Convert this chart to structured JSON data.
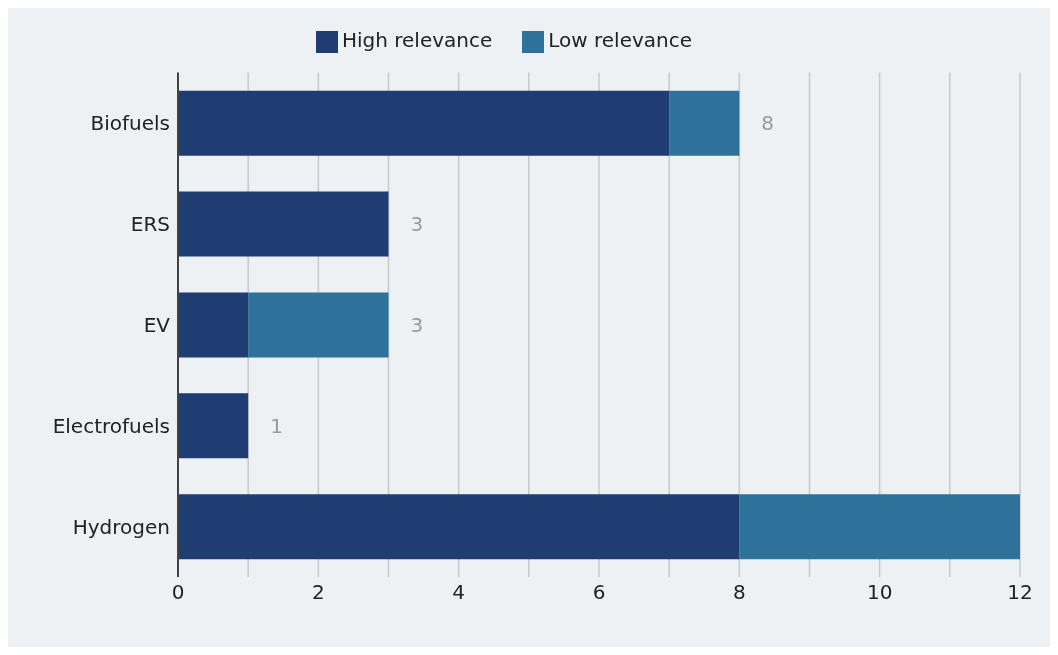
{
  "chart_data": {
    "type": "bar",
    "orientation": "horizontal",
    "stacked": true,
    "categories": [
      "Biofuels",
      "ERS",
      "EV",
      "Electrofuels",
      "Hydrogen"
    ],
    "series": [
      {
        "name": "High relevance",
        "color": "#1f3d73",
        "values": [
          7,
          3,
          1,
          1,
          8
        ]
      },
      {
        "name": "Low relevance",
        "color": "#2e729b",
        "values": [
          1,
          null,
          2,
          null,
          4
        ]
      }
    ],
    "totals": [
      "8",
      "3",
      "3",
      "1",
      null
    ],
    "xlim": [
      0,
      12
    ],
    "xticks": [
      0,
      {
        "value": 1,
        "label": null
      },
      2,
      {
        "value": 3,
        "label": null
      },
      4,
      {
        "value": 5,
        "label": null
      },
      6,
      {
        "value": 7,
        "label": null
      },
      8,
      {
        "value": 9,
        "label": null
      },
      10,
      {
        "value": 11,
        "label": null
      },
      12
    ],
    "grid": "x",
    "legend": "top"
  }
}
